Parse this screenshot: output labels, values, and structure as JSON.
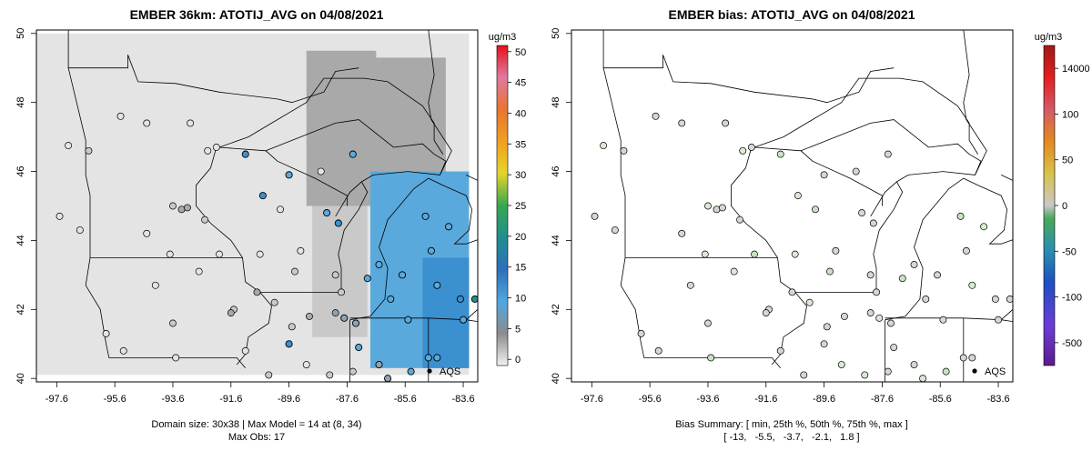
{
  "chart_data": [
    {
      "type": "heatmap",
      "title": "EMBER 36km: ATOTIJ_AVG on 04/08/2021",
      "x_ticks": [
        "-97.6",
        "-95.6",
        "-93.6",
        "-91.6",
        "-89.6",
        "-87.6",
        "-85.6",
        "-83.6"
      ],
      "y_ticks": [
        "40",
        "42",
        "44",
        "46",
        "48",
        "50"
      ],
      "xlim": [
        -98.3,
        -83.1
      ],
      "ylim": [
        39.9,
        50.1
      ],
      "colorbar": {
        "unit": "ug/m3",
        "ticks": [
          "0",
          "5",
          "10",
          "15",
          "20",
          "25",
          "30",
          "35",
          "40",
          "45",
          "50"
        ],
        "range": [
          -1,
          51
        ]
      },
      "legend_label": "AQS",
      "footer_lines": [
        "Domain size: 30x38 | Max Model = 14 at (8, 34)",
        "Max Obs: 17"
      ],
      "model_regions": [
        {
          "lon": [
            -98.3,
            -83.4
          ],
          "lat": [
            40.1,
            50.0
          ],
          "value": 2
        },
        {
          "lon": [
            -89.0,
            -86.6
          ],
          "lat": [
            45.0,
            49.5
          ],
          "value": 5
        },
        {
          "lon": [
            -87.5,
            -84.2
          ],
          "lat": [
            46.0,
            49.3
          ],
          "value": 6
        },
        {
          "lon": [
            -88.8,
            -86.9
          ],
          "lat": [
            41.2,
            45.0
          ],
          "value": 4
        },
        {
          "lon": [
            -86.8,
            -83.4
          ],
          "lat": [
            40.3,
            46.0
          ],
          "value": 11
        },
        {
          "lon": [
            -85.0,
            -83.4
          ],
          "lat": [
            40.3,
            43.5
          ],
          "value": 13
        }
      ],
      "aqs_obs": [
        {
          "lon": -97.2,
          "lat": 46.75,
          "value": 2
        },
        {
          "lon": -96.5,
          "lat": 46.6,
          "value": 3
        },
        {
          "lon": -95.4,
          "lat": 47.6,
          "value": 1
        },
        {
          "lon": -94.5,
          "lat": 47.4,
          "value": 1
        },
        {
          "lon": -93.0,
          "lat": 47.4,
          "value": 1
        },
        {
          "lon": -92.4,
          "lat": 46.6,
          "value": 2
        },
        {
          "lon": -92.1,
          "lat": 46.7,
          "value": 1
        },
        {
          "lon": -91.1,
          "lat": 46.5,
          "value": 13
        },
        {
          "lon": -96.8,
          "lat": 44.3,
          "value": 2
        },
        {
          "lon": -97.5,
          "lat": 44.7,
          "value": 1
        },
        {
          "lon": -93.6,
          "lat": 45.0,
          "value": 4
        },
        {
          "lon": -93.3,
          "lat": 44.9,
          "value": 5
        },
        {
          "lon": -93.1,
          "lat": 44.95,
          "value": 5
        },
        {
          "lon": -92.5,
          "lat": 44.6,
          "value": 4
        },
        {
          "lon": -92.0,
          "lat": 43.6,
          "value": 1
        },
        {
          "lon": -93.7,
          "lat": 43.6,
          "value": 1
        },
        {
          "lon": -94.5,
          "lat": 44.2,
          "value": 1
        },
        {
          "lon": -89.6,
          "lat": 45.9,
          "value": 12
        },
        {
          "lon": -88.5,
          "lat": 46.0,
          "value": 1
        },
        {
          "lon": -87.4,
          "lat": 46.5,
          "value": 12
        },
        {
          "lon": -90.5,
          "lat": 45.3,
          "value": 13
        },
        {
          "lon": -89.9,
          "lat": 44.9,
          "value": 2
        },
        {
          "lon": -88.3,
          "lat": 44.8,
          "value": 12
        },
        {
          "lon": -87.9,
          "lat": 44.5,
          "value": 13
        },
        {
          "lon": -89.2,
          "lat": 43.7,
          "value": 1
        },
        {
          "lon": -90.6,
          "lat": 43.6,
          "value": 2
        },
        {
          "lon": -88.0,
          "lat": 43.0,
          "value": 3
        },
        {
          "lon": -87.8,
          "lat": 42.5,
          "value": 4
        },
        {
          "lon": -89.4,
          "lat": 43.1,
          "value": 3
        },
        {
          "lon": -90.7,
          "lat": 42.5,
          "value": 5
        },
        {
          "lon": -90.1,
          "lat": 42.2,
          "value": 4
        },
        {
          "lon": -91.5,
          "lat": 42.0,
          "value": 4
        },
        {
          "lon": -91.6,
          "lat": 41.9,
          "value": 5
        },
        {
          "lon": -93.6,
          "lat": 41.6,
          "value": 3
        },
        {
          "lon": -95.9,
          "lat": 41.3,
          "value": 2
        },
        {
          "lon": -92.7,
          "lat": 43.1,
          "value": 1
        },
        {
          "lon": -94.2,
          "lat": 42.7,
          "value": 1
        },
        {
          "lon": -89.5,
          "lat": 41.5,
          "value": 4
        },
        {
          "lon": -88.9,
          "lat": 41.8,
          "value": 5
        },
        {
          "lon": -88.0,
          "lat": 41.9,
          "value": 7
        },
        {
          "lon": -87.7,
          "lat": 41.75,
          "value": 8
        },
        {
          "lon": -87.3,
          "lat": 41.6,
          "value": 9
        },
        {
          "lon": -86.9,
          "lat": 42.9,
          "value": 10
        },
        {
          "lon": -86.5,
          "lat": 43.3,
          "value": 12
        },
        {
          "lon": -85.7,
          "lat": 43.0,
          "value": 12
        },
        {
          "lon": -84.5,
          "lat": 42.7,
          "value": 12
        },
        {
          "lon": -83.7,
          "lat": 42.3,
          "value": 13
        },
        {
          "lon": -83.2,
          "lat": 42.3,
          "value": 17
        },
        {
          "lon": -83.6,
          "lat": 41.7,
          "value": 12
        },
        {
          "lon": -84.9,
          "lat": 44.7,
          "value": 12
        },
        {
          "lon": -84.1,
          "lat": 44.4,
          "value": 11
        },
        {
          "lon": -84.7,
          "lat": 43.7,
          "value": 12
        },
        {
          "lon": -86.1,
          "lat": 42.3,
          "value": 11
        },
        {
          "lon": -85.5,
          "lat": 41.7,
          "value": 11
        },
        {
          "lon": -86.5,
          "lat": 40.4,
          "value": 9
        },
        {
          "lon": -86.2,
          "lat": 40.0,
          "value": 9
        },
        {
          "lon": -85.4,
          "lat": 40.2,
          "value": 10
        },
        {
          "lon": -84.5,
          "lat": 40.6,
          "value": 12
        },
        {
          "lon": -84.8,
          "lat": 40.6,
          "value": 11
        },
        {
          "lon": -87.4,
          "lat": 40.2,
          "value": 3
        },
        {
          "lon": -88.2,
          "lat": 40.1,
          "value": 3
        },
        {
          "lon": -89.6,
          "lat": 41.0,
          "value": 13
        },
        {
          "lon": -91.1,
          "lat": 40.8,
          "value": 2
        },
        {
          "lon": -93.5,
          "lat": 40.6,
          "value": 1
        },
        {
          "lon": -95.3,
          "lat": 40.8,
          "value": 1
        },
        {
          "lon": -89.0,
          "lat": 40.4,
          "value": 2
        },
        {
          "lon": -90.3,
          "lat": 40.1,
          "value": 3
        },
        {
          "lon": -87.2,
          "lat": 40.9,
          "value": 11
        }
      ]
    },
    {
      "type": "scatter",
      "title": "EMBER bias: ATOTIJ_AVG on 04/08/2021",
      "x_ticks": [
        "-97.6",
        "-95.6",
        "-93.6",
        "-91.6",
        "-89.6",
        "-87.6",
        "-85.6",
        "-83.6"
      ],
      "y_ticks": [
        "40",
        "42",
        "44",
        "46",
        "48",
        "50"
      ],
      "xlim": [
        -98.3,
        -83.1
      ],
      "ylim": [
        39.9,
        50.1
      ],
      "colorbar": {
        "unit": "ug/m3",
        "ticks": [
          "-500",
          "-100",
          "-50",
          "0",
          "50",
          "100",
          "14000"
        ],
        "range": [
          -550,
          14500
        ]
      },
      "legend_label": "AQS",
      "footer_lines": [
        "Bias Summary: [ min, 25th %, 50th %, 75th %, max ]",
        "[ -13,   -5.5,   -3.7,   -2.1,   1.8 ]"
      ],
      "bias_summary": {
        "min": -13,
        "p25": -5.5,
        "p50": -3.7,
        "p75": -2.1,
        "max": 1.8
      }
    }
  ]
}
